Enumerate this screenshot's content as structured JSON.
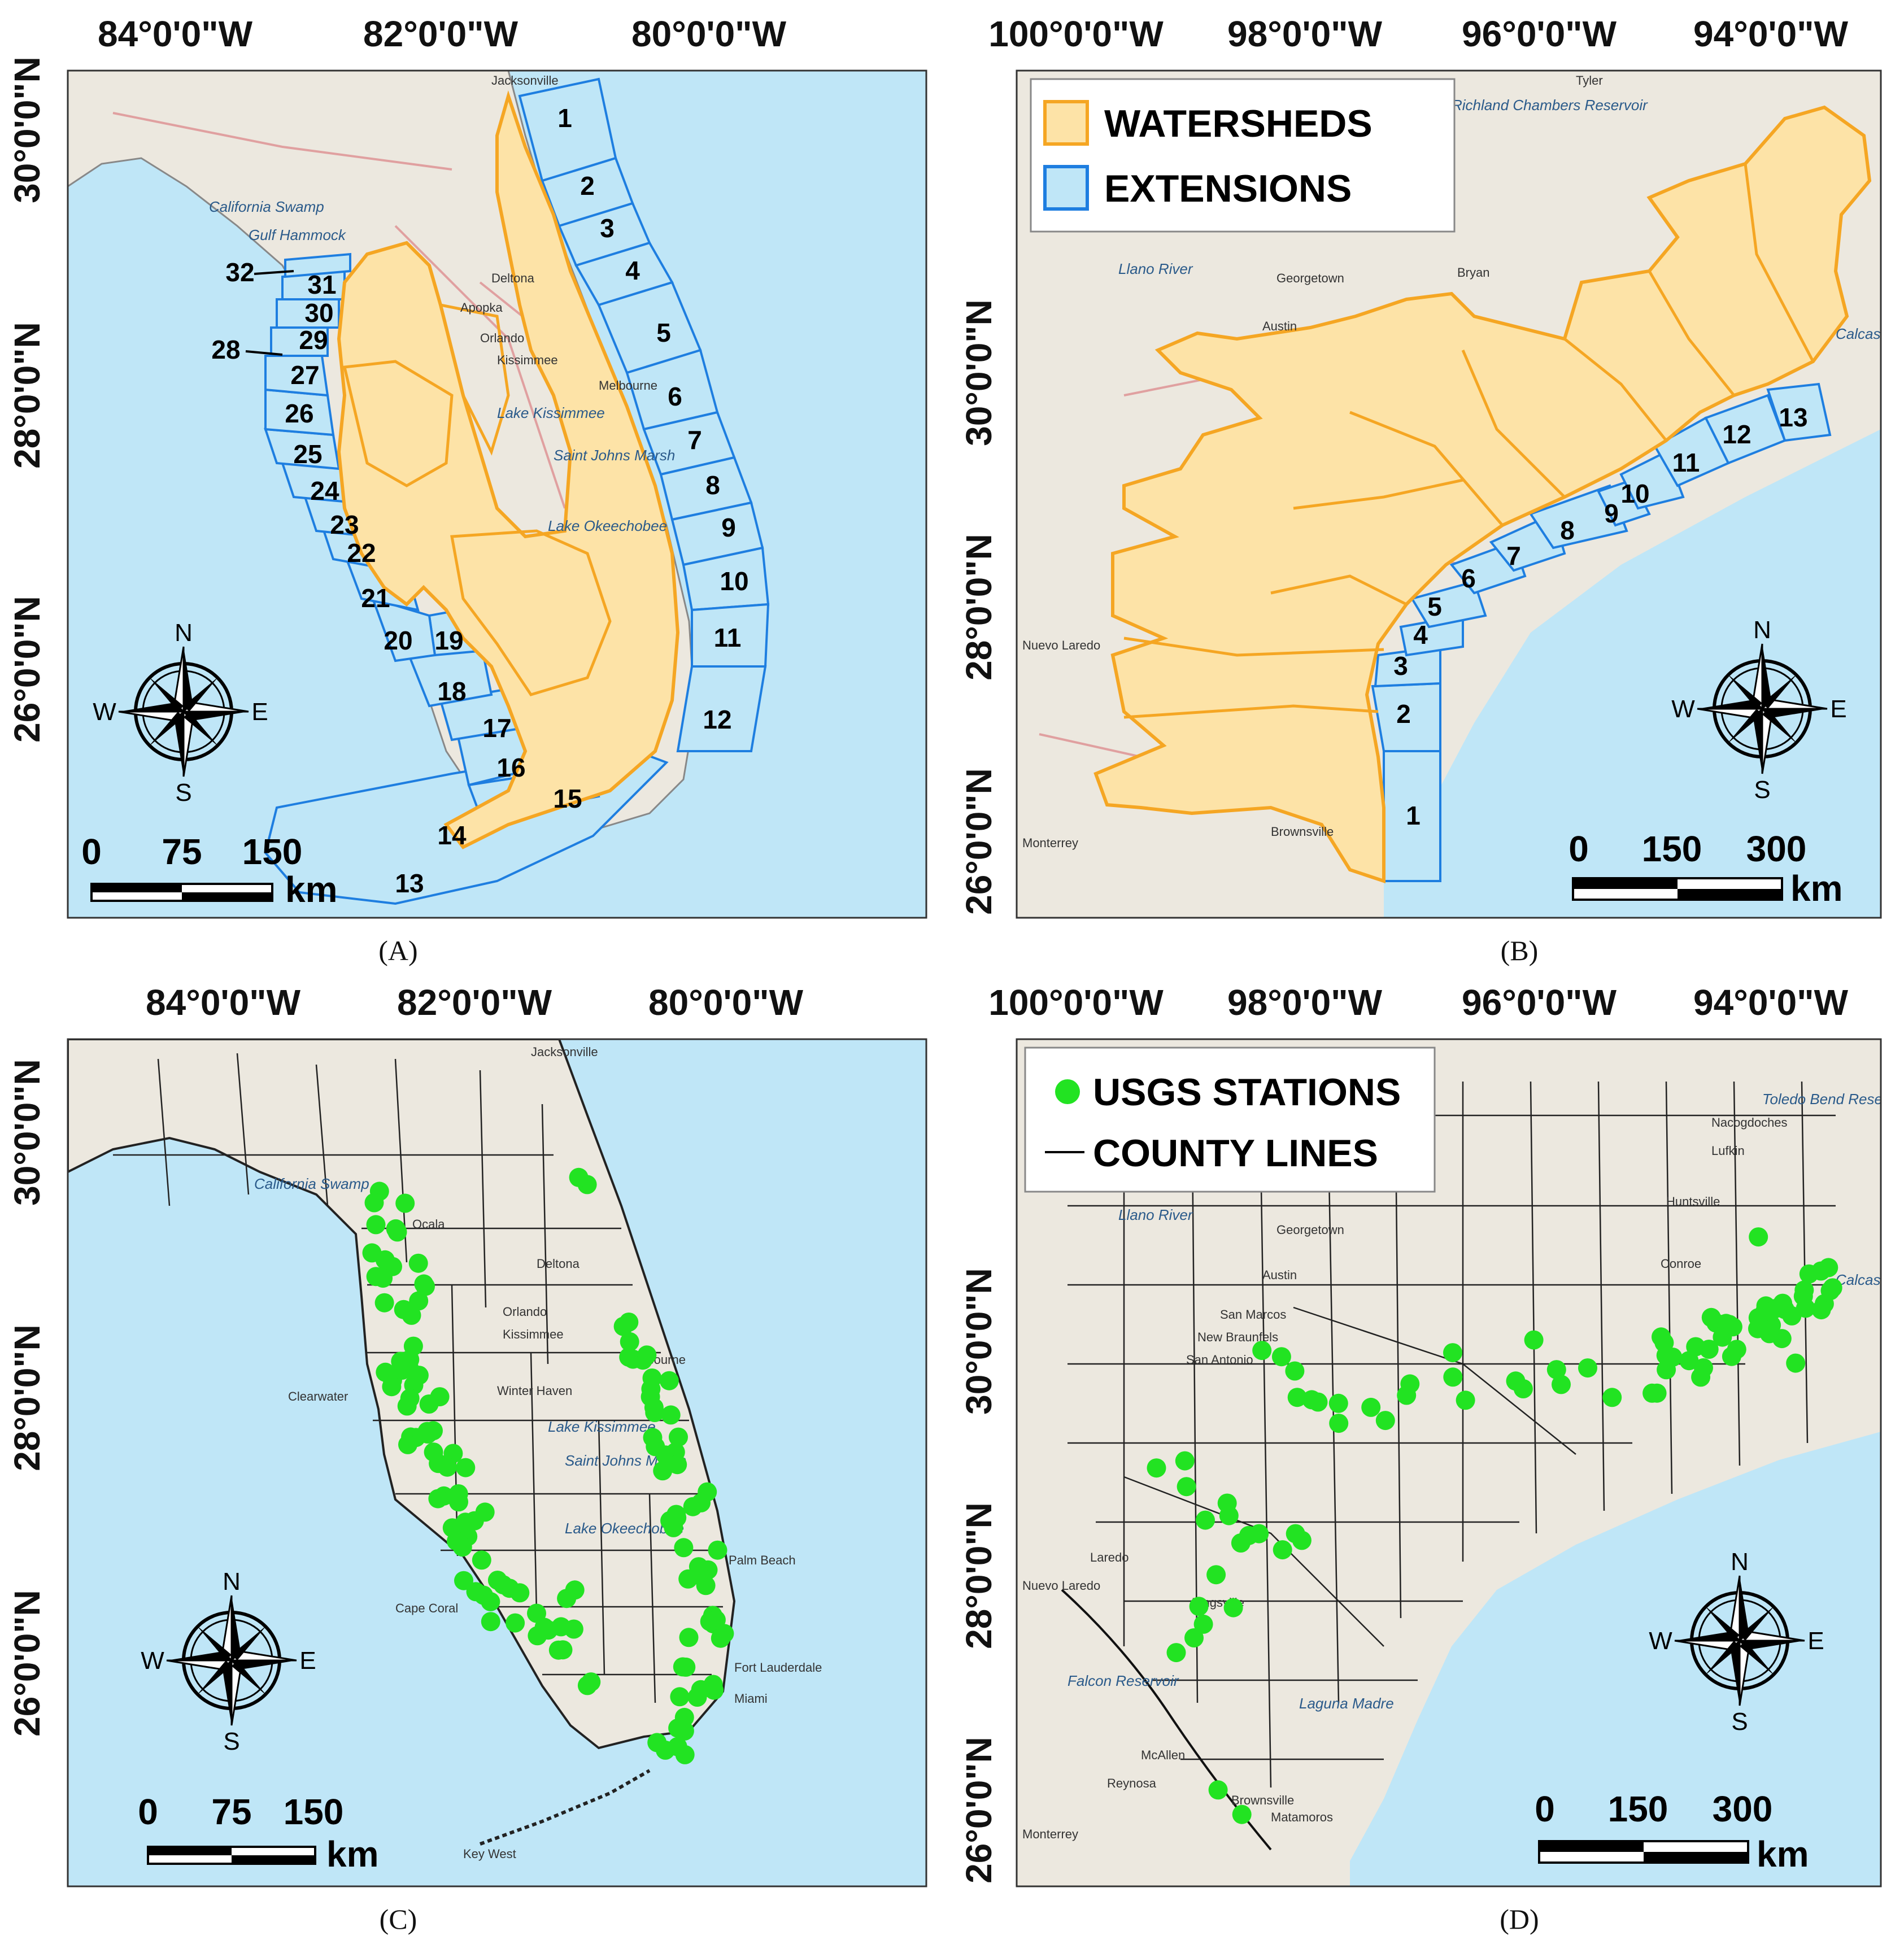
{
  "panels": [
    {
      "id": "A",
      "label": "(A)",
      "x_ticks": [
        "84°0'0\"W",
        "82°0'0\"W",
        "80°0'0\"W"
      ],
      "y_ticks": [
        "30°0'0\"N",
        "28°0'0\"N",
        "26°0'0\"N"
      ],
      "scale": {
        "values": [
          "0",
          "75",
          "150"
        ],
        "unit": "km"
      },
      "compass": [
        "N",
        "E",
        "S",
        "W"
      ],
      "regions": [
        "1",
        "2",
        "3",
        "4",
        "5",
        "6",
        "7",
        "8",
        "9",
        "10",
        "11",
        "12",
        "13",
        "14",
        "15",
        "16",
        "17",
        "18",
        "19",
        "20",
        "21",
        "22",
        "23",
        "24",
        "25",
        "26",
        "27",
        "28",
        "29",
        "30",
        "31",
        "32"
      ],
      "places": [
        "Jacksonville",
        "California Swamp",
        "Gulf Hammock",
        "Deltona",
        "Apopka",
        "Orlando",
        "Kissimmee",
        "Lake Kissimmee",
        "Saint Johns Marsh",
        "Lake Okeechobee",
        "Melbourne"
      ]
    },
    {
      "id": "B",
      "label": "(B)",
      "x_ticks": [
        "100°0'0\"W",
        "98°0'0\"W",
        "96°0'0\"W",
        "94°0'0\"W"
      ],
      "y_ticks": [
        "30°0'0\"N",
        "28°0'0\"N",
        "26°0'0\"N"
      ],
      "scale": {
        "values": [
          "0",
          "150",
          "300"
        ],
        "unit": "km"
      },
      "compass": [
        "N",
        "E",
        "S",
        "W"
      ],
      "legend": [
        {
          "label": "WATERSHEDS",
          "fill": "#fde3a7",
          "stroke": "#f5a623"
        },
        {
          "label": "EXTENSIONS",
          "fill": "#bfe6f7",
          "stroke": "#1e7ee0"
        }
      ],
      "regions": [
        "1",
        "2",
        "3",
        "4",
        "5",
        "6",
        "7",
        "8",
        "9",
        "10",
        "11",
        "12",
        "13"
      ],
      "places": [
        "Tyler",
        "Richland Chambers Reservoir",
        "Llano River",
        "Georgetown",
        "Austin",
        "Bryan",
        "Monterrey",
        "Brownsville",
        "Nuevo Laredo",
        "Calcasieu Lake"
      ]
    },
    {
      "id": "C",
      "label": "(C)",
      "x_ticks": [
        "84°0'0\"W",
        "82°0'0\"W",
        "80°0'0\"W"
      ],
      "y_ticks": [
        "30°0'0\"N",
        "28°0'0\"N",
        "26°0'0\"N"
      ],
      "scale": {
        "values": [
          "0",
          "75",
          "150"
        ],
        "unit": "km"
      },
      "compass": [
        "N",
        "E",
        "S",
        "W"
      ],
      "places": [
        "Jacksonville",
        "California Swamp",
        "Ocala",
        "Deltona",
        "Orlando",
        "Kissimmee",
        "Clearwater",
        "Winter Haven",
        "Lake Kissimmee",
        "Saint Johns Marsh",
        "Melbourne",
        "Lake Okeechobee",
        "Cape Coral",
        "Palm Beach",
        "Fort Lauderdale",
        "Miami",
        "Key West"
      ]
    },
    {
      "id": "D",
      "label": "(D)",
      "x_ticks": [
        "100°0'0\"W",
        "98°0'0\"W",
        "96°0'0\"W",
        "94°0'0\"W"
      ],
      "y_ticks": [
        "30°0'0\"N",
        "28°0'0\"N",
        "26°0'0\"N"
      ],
      "scale": {
        "values": [
          "0",
          "150",
          "300"
        ],
        "unit": "km"
      },
      "compass": [
        "N",
        "E",
        "S",
        "W"
      ],
      "legend": [
        {
          "label": "USGS STATIONS",
          "symbol": "dot",
          "color": "#22e322"
        },
        {
          "label": "COUNTY LINES",
          "symbol": "line",
          "color": "#000000"
        }
      ],
      "places": [
        "Llano River",
        "Georgetown",
        "Austin",
        "San Marcos",
        "New Braunfels",
        "San Antonio",
        "Huntsville",
        "Conroe",
        "Lufkin",
        "Nacogdoches",
        "Laredo",
        "Nuevo Laredo",
        "Falcon Reservoir",
        "McAllen",
        "Reynosa",
        "Brownsville",
        "Matamoros",
        "Monterrey",
        "Kingsville",
        "Laguna Madre",
        "Calcasieu Lake",
        "Toledo Bend Reservoir"
      ]
    }
  ],
  "colors": {
    "ocean": "#bfe6f7",
    "watershed_fill": "#fde3a7",
    "watershed_stroke": "#f5a623",
    "extension_stroke": "#1e7ee0",
    "station": "#22e322",
    "land": "#ece8df"
  }
}
